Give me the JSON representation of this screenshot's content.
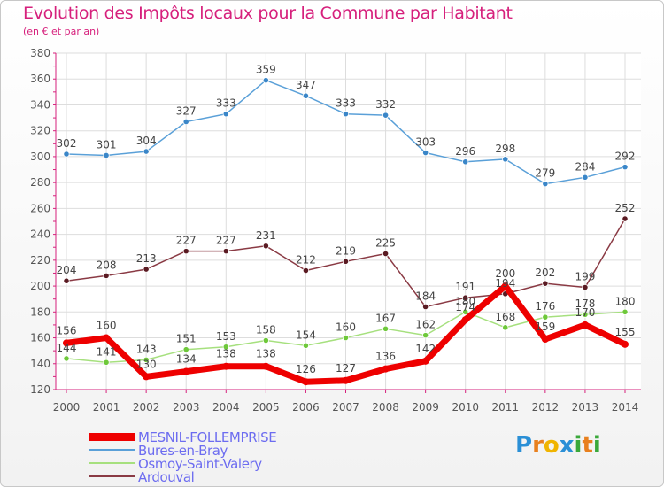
{
  "title": "Evolution des Impôts locaux pour la Commune par Habitant",
  "subtitle": "(en € et par an)",
  "brand": "Proxiti",
  "colors": {
    "accent": "#d6207c",
    "legend_text": "#6c6cf0",
    "axis": "#d6207c",
    "grid": "#dddddd"
  },
  "chart_data": {
    "type": "line",
    "title": "Evolution des Impôts locaux pour la Commune par Habitant",
    "subtitle": "(en € et par an)",
    "xlabel": "",
    "ylabel": "",
    "x": [
      "2000",
      "2001",
      "2002",
      "2003",
      "2004",
      "2005",
      "2006",
      "2007",
      "2008",
      "2009",
      "2010",
      "2011",
      "2012",
      "2013",
      "2014"
    ],
    "ylim": [
      120,
      380
    ],
    "yticks": [
      120,
      140,
      160,
      180,
      200,
      220,
      240,
      260,
      280,
      300,
      320,
      340,
      360,
      380
    ],
    "grid": true,
    "legend_position": "bottom-left",
    "series": [
      {
        "name": "Bures-en-Bray",
        "color": "#5aa0d8",
        "marker": "#3a86c8",
        "values": [
          302,
          301,
          304,
          327,
          333,
          359,
          347,
          333,
          332,
          303,
          296,
          298,
          279,
          284,
          292
        ]
      },
      {
        "name": "Ardouval",
        "color": "#8a3a44",
        "marker": "#5a1a22",
        "values": [
          204,
          208,
          213,
          227,
          227,
          231,
          212,
          219,
          225,
          184,
          191,
          194,
          202,
          199,
          252
        ]
      },
      {
        "name": "Osmoy-Saint-Valery",
        "color": "#a6e07e",
        "marker": "#6ec83a",
        "values": [
          144,
          141,
          143,
          151,
          153,
          158,
          154,
          160,
          167,
          162,
          180,
          168,
          176,
          178,
          180
        ]
      },
      {
        "name": "MESNIL-FOLLEMPRISE",
        "color": "#ee0000",
        "marker": "#ee0000",
        "values": [
          156,
          160,
          130,
          134,
          138,
          138,
          126,
          127,
          136,
          142,
          174,
          200,
          159,
          170,
          155
        ]
      }
    ]
  }
}
